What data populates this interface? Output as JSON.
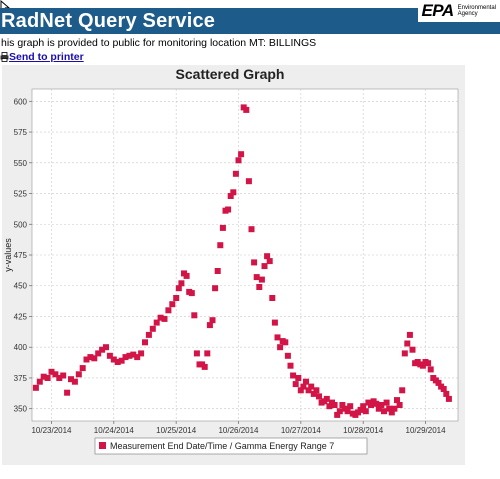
{
  "header": {
    "title": "RadNet Query Service"
  },
  "logo": {
    "mark": "EPA",
    "sub1": "Environmental",
    "sub2": "Agency"
  },
  "description": "his graph is provided to public for monitoring location MT: BILLINGS",
  "printer": {
    "label": "Send to printer"
  },
  "colors": {
    "header_bg": "#1d5c8a",
    "marker": "#d21446",
    "plot_bg": "#ffffff",
    "frame_bg": "#eeeeee"
  },
  "chart_data": {
    "type": "scatter",
    "title": "Scattered Graph",
    "ylabel": "y-values",
    "xlabel": "",
    "ylim": [
      340,
      610
    ],
    "xlim": [
      "10/22/2014 16:30",
      "10/29/2014 12:30"
    ],
    "yticks": [
      350,
      375,
      400,
      425,
      450,
      475,
      500,
      525,
      550,
      575,
      600
    ],
    "xticks": [
      "10/23/2014",
      "10/24/2014",
      "10/25/2014",
      "10/26/2014",
      "10/27/2014",
      "10/28/2014",
      "10/29/2014"
    ],
    "grid": true,
    "legend": {
      "position": "bottom",
      "entries": [
        "Measurement End Date/Time / Gamma Energy Range 7"
      ]
    },
    "series": [
      {
        "name": "Measurement End Date/Time / Gamma Energy Range 7",
        "points": [
          [
            "10/22/2014 18:00",
            367
          ],
          [
            "10/22/2014 19:30",
            372
          ],
          [
            "10/22/2014 21:00",
            376
          ],
          [
            "10/22/2014 22:30",
            375
          ],
          [
            "10/23/2014 00:00",
            380
          ],
          [
            "10/23/2014 01:30",
            378
          ],
          [
            "10/23/2014 03:00",
            375
          ],
          [
            "10/23/2014 04:30",
            377
          ],
          [
            "10/23/2014 06:00",
            363
          ],
          [
            "10/23/2014 07:30",
            374
          ],
          [
            "10/23/2014 09:00",
            372
          ],
          [
            "10/23/2014 10:30",
            378
          ],
          [
            "10/23/2014 12:00",
            383
          ],
          [
            "10/23/2014 13:30",
            390
          ],
          [
            "10/23/2014 15:00",
            392
          ],
          [
            "10/23/2014 16:30",
            391
          ],
          [
            "10/23/2014 18:00",
            395
          ],
          [
            "10/23/2014 19:30",
            398
          ],
          [
            "10/23/2014 21:00",
            400
          ],
          [
            "10/23/2014 22:30",
            393
          ],
          [
            "10/24/2014 00:00",
            390
          ],
          [
            "10/24/2014 01:30",
            388
          ],
          [
            "10/24/2014 03:00",
            389
          ],
          [
            "10/24/2014 04:30",
            392
          ],
          [
            "10/24/2014 06:00",
            393
          ],
          [
            "10/24/2014 07:30",
            394
          ],
          [
            "10/24/2014 09:00",
            392
          ],
          [
            "10/24/2014 10:30",
            395
          ],
          [
            "10/24/2014 12:00",
            404
          ],
          [
            "10/24/2014 13:30",
            410
          ],
          [
            "10/24/2014 15:00",
            415
          ],
          [
            "10/24/2014 16:30",
            420
          ],
          [
            "10/24/2014 18:00",
            424
          ],
          [
            "10/24/2014 19:30",
            423
          ],
          [
            "10/24/2014 21:00",
            430
          ],
          [
            "10/24/2014 22:30",
            435
          ],
          [
            "10/25/2014 00:00",
            440
          ],
          [
            "10/25/2014 01:00",
            448
          ],
          [
            "10/25/2014 02:00",
            452
          ],
          [
            "10/25/2014 03:00",
            460
          ],
          [
            "10/25/2014 04:00",
            458
          ],
          [
            "10/25/2014 05:00",
            445
          ],
          [
            "10/25/2014 06:00",
            444
          ],
          [
            "10/25/2014 07:00",
            426
          ],
          [
            "10/25/2014 08:00",
            395
          ],
          [
            "10/25/2014 09:00",
            386
          ],
          [
            "10/25/2014 10:00",
            386
          ],
          [
            "10/25/2014 11:00",
            384
          ],
          [
            "10/25/2014 12:00",
            395
          ],
          [
            "10/25/2014 13:00",
            418
          ],
          [
            "10/25/2014 14:00",
            422
          ],
          [
            "10/25/2014 15:00",
            448
          ],
          [
            "10/25/2014 16:00",
            462
          ],
          [
            "10/25/2014 17:00",
            483
          ],
          [
            "10/25/2014 18:00",
            497
          ],
          [
            "10/25/2014 19:00",
            511
          ],
          [
            "10/25/2014 20:00",
            512
          ],
          [
            "10/25/2014 21:00",
            523
          ],
          [
            "10/25/2014 22:00",
            526
          ],
          [
            "10/25/2014 23:00",
            541
          ],
          [
            "10/26/2014 00:00",
            552
          ],
          [
            "10/26/2014 01:00",
            557
          ],
          [
            "10/26/2014 02:00",
            595
          ],
          [
            "10/26/2014 03:00",
            593
          ],
          [
            "10/26/2014 04:00",
            535
          ],
          [
            "10/26/2014 05:00",
            496
          ],
          [
            "10/26/2014 06:00",
            469
          ],
          [
            "10/26/2014 07:00",
            457
          ],
          [
            "10/26/2014 08:00",
            449
          ],
          [
            "10/26/2014 09:00",
            455
          ],
          [
            "10/26/2014 10:00",
            466
          ],
          [
            "10/26/2014 11:00",
            474
          ],
          [
            "10/26/2014 12:00",
            470
          ],
          [
            "10/26/2014 13:00",
            440
          ],
          [
            "10/26/2014 14:00",
            420
          ],
          [
            "10/26/2014 15:00",
            408
          ],
          [
            "10/26/2014 16:00",
            400
          ],
          [
            "10/26/2014 17:00",
            405
          ],
          [
            "10/26/2014 18:00",
            404
          ],
          [
            "10/26/2014 19:00",
            393
          ],
          [
            "10/26/2014 20:00",
            385
          ],
          [
            "10/26/2014 21:00",
            377
          ],
          [
            "10/26/2014 22:00",
            370
          ],
          [
            "10/26/2014 23:00",
            375
          ],
          [
            "10/27/2014 00:00",
            365
          ],
          [
            "10/27/2014 01:00",
            368
          ],
          [
            "10/27/2014 02:00",
            372
          ],
          [
            "10/27/2014 03:00",
            365
          ],
          [
            "10/27/2014 04:00",
            368
          ],
          [
            "10/27/2014 05:00",
            362
          ],
          [
            "10/27/2014 06:00",
            365
          ],
          [
            "10/27/2014 07:00",
            360
          ],
          [
            "10/27/2014 08:00",
            355
          ],
          [
            "10/27/2014 09:00",
            356
          ],
          [
            "10/27/2014 10:00",
            358
          ],
          [
            "10/27/2014 11:00",
            352
          ],
          [
            "10/27/2014 12:00",
            355
          ],
          [
            "10/27/2014 13:00",
            353
          ],
          [
            "10/27/2014 14:00",
            345
          ],
          [
            "10/27/2014 15:00",
            348
          ],
          [
            "10/27/2014 16:00",
            353
          ],
          [
            "10/27/2014 17:00",
            350
          ],
          [
            "10/27/2014 18:00",
            348
          ],
          [
            "10/27/2014 19:00",
            352
          ],
          [
            "10/27/2014 20:00",
            346
          ],
          [
            "10/27/2014 21:00",
            345
          ],
          [
            "10/27/2014 22:00",
            347
          ],
          [
            "10/27/2014 23:00",
            349
          ],
          [
            "10/28/2014 00:00",
            352
          ],
          [
            "10/28/2014 01:00",
            348
          ],
          [
            "10/28/2014 02:00",
            355
          ],
          [
            "10/28/2014 03:00",
            353
          ],
          [
            "10/28/2014 04:00",
            356
          ],
          [
            "10/28/2014 05:00",
            354
          ],
          [
            "10/28/2014 06:00",
            350
          ],
          [
            "10/28/2014 07:00",
            353
          ],
          [
            "10/28/2014 08:00",
            348
          ],
          [
            "10/28/2014 09:00",
            355
          ],
          [
            "10/28/2014 10:00",
            350
          ],
          [
            "10/28/2014 11:00",
            347
          ],
          [
            "10/28/2014 12:00",
            350
          ],
          [
            "10/28/2014 13:00",
            357
          ],
          [
            "10/28/2014 14:00",
            353
          ],
          [
            "10/28/2014 15:00",
            365
          ],
          [
            "10/28/2014 16:00",
            395
          ],
          [
            "10/28/2014 17:00",
            403
          ],
          [
            "10/28/2014 18:00",
            410
          ],
          [
            "10/28/2014 19:00",
            398
          ],
          [
            "10/28/2014 20:00",
            387
          ],
          [
            "10/28/2014 21:00",
            388
          ],
          [
            "10/28/2014 22:00",
            386
          ],
          [
            "10/28/2014 23:00",
            385
          ],
          [
            "10/29/2014 00:00",
            388
          ],
          [
            "10/29/2014 01:00",
            387
          ],
          [
            "10/29/2014 02:00",
            382
          ],
          [
            "10/29/2014 03:00",
            375
          ],
          [
            "10/29/2014 04:00",
            373
          ],
          [
            "10/29/2014 05:00",
            371
          ],
          [
            "10/29/2014 06:00",
            368
          ],
          [
            "10/29/2014 07:00",
            366
          ],
          [
            "10/29/2014 08:00",
            362
          ],
          [
            "10/29/2014 09:00",
            358
          ]
        ]
      }
    ]
  }
}
